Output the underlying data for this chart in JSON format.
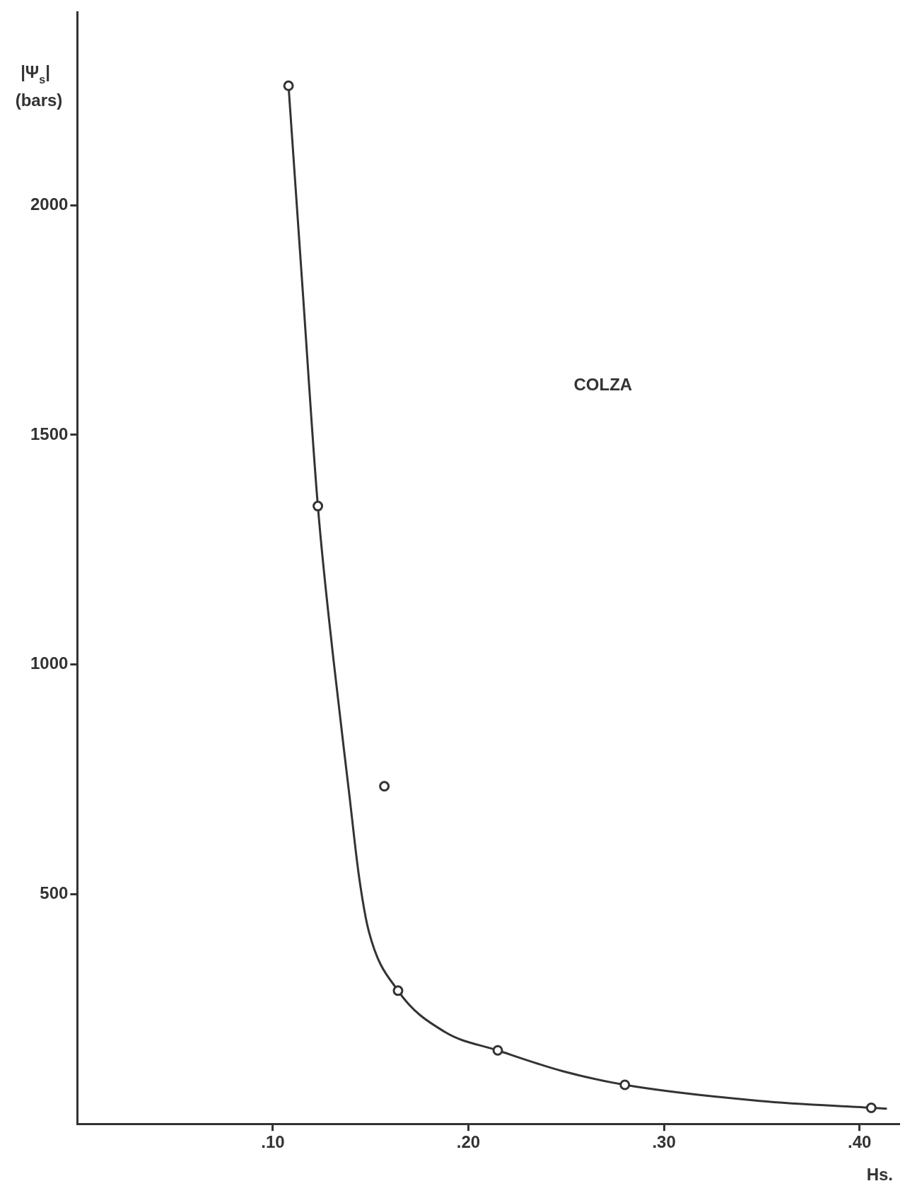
{
  "chart_data": {
    "type": "scatter",
    "ylabel": "|Ψ$_{s}$| (bars)",
    "xlabel": "Hs.",
    "annotations": [
      "COLZA"
    ],
    "xlim": [
      0,
      0.42
    ],
    "ylim": [
      0,
      2420
    ],
    "xticks": [
      {
        "value": 0.1,
        "label": ".10"
      },
      {
        "value": 0.2,
        "label": ".20"
      },
      {
        "value": 0.3,
        "label": ".30"
      },
      {
        "value": 0.4,
        "label": ".40"
      }
    ],
    "yticks": [
      500,
      1000,
      1500,
      2000
    ],
    "grid": false,
    "legend": false,
    "series": [
      {
        "type": "scatter",
        "marker": "circle",
        "color": "#333333",
        "x": [
          0.108,
          0.123,
          0.157,
          0.164,
          0.215,
          0.28,
          0.406
        ],
        "values": [
          2260,
          1345,
          735,
          290,
          160,
          85,
          35
        ]
      },
      {
        "type": "line",
        "marker": "none",
        "line_style": "solid",
        "color": "#333333",
        "x": [
          0.108,
          0.115,
          0.123,
          0.131,
          0.139,
          0.144,
          0.149,
          0.164,
          0.188,
          0.215,
          0.248,
          0.28,
          0.349,
          0.406,
          0.414
        ],
        "values": [
          2260,
          1830,
          1345,
          1010,
          720,
          540,
          420,
          290,
          200,
          160,
          115,
          85,
          50,
          35,
          33
        ]
      }
    ]
  }
}
